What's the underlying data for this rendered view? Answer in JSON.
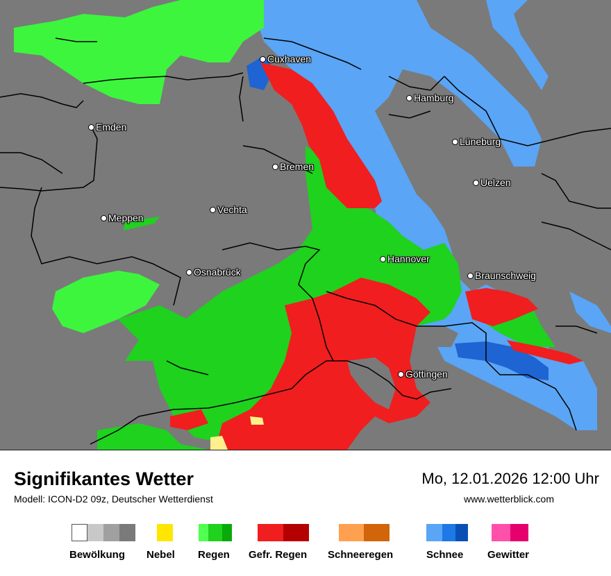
{
  "map": {
    "cities": [
      {
        "name": "Cuxhaven"
      },
      {
        "name": "Hamburg"
      },
      {
        "name": "Emden"
      },
      {
        "name": "Lüneburg"
      },
      {
        "name": "Bremen"
      },
      {
        "name": "Uelzen"
      },
      {
        "name": "Vechta"
      },
      {
        "name": "Meppen"
      },
      {
        "name": "Hannover"
      },
      {
        "name": "Osnabrück"
      },
      {
        "name": "Braunschweig"
      },
      {
        "name": "Göttingen"
      }
    ],
    "colors": {
      "background_gray": "#7a7a7a",
      "rain_light": "#3df53d",
      "rain": "#1ed21e",
      "freezing_rain": "#f01e1e",
      "snow_light": "#5aa5f5",
      "snow": "#1e64d2",
      "fog": "#fff08c"
    }
  },
  "footer": {
    "title": "Signifikantes Wetter",
    "subtitle": "Modell: ICON-D2 09z, Deutscher Wetterdienst",
    "datetime": "Mo, 12.01.2026 12:00 Uhr",
    "website": "www.wetterblick.com"
  },
  "legend": [
    {
      "label": "Bewölkung",
      "colors": [
        "#ffffff",
        "#c8c8c8",
        "#a0a0a0",
        "#7a7a7a"
      ]
    },
    {
      "label": "Nebel",
      "colors": [
        "#ffe600"
      ]
    },
    {
      "label": "Regen",
      "colors": [
        "#50ff50",
        "#1ed21e",
        "#0aaa0a"
      ]
    },
    {
      "label": "Gefr. Regen",
      "colors": [
        "#f01e1e",
        "#b40000"
      ]
    },
    {
      "label": "Schneeregen",
      "colors": [
        "#ffa050",
        "#d2640a"
      ]
    },
    {
      "label": "Schnee",
      "colors": [
        "#5aa5f5",
        "#1e78e6",
        "#0a50b4"
      ]
    },
    {
      "label": "Gewitter",
      "colors": [
        "#ff50aa",
        "#e6006e"
      ]
    }
  ]
}
